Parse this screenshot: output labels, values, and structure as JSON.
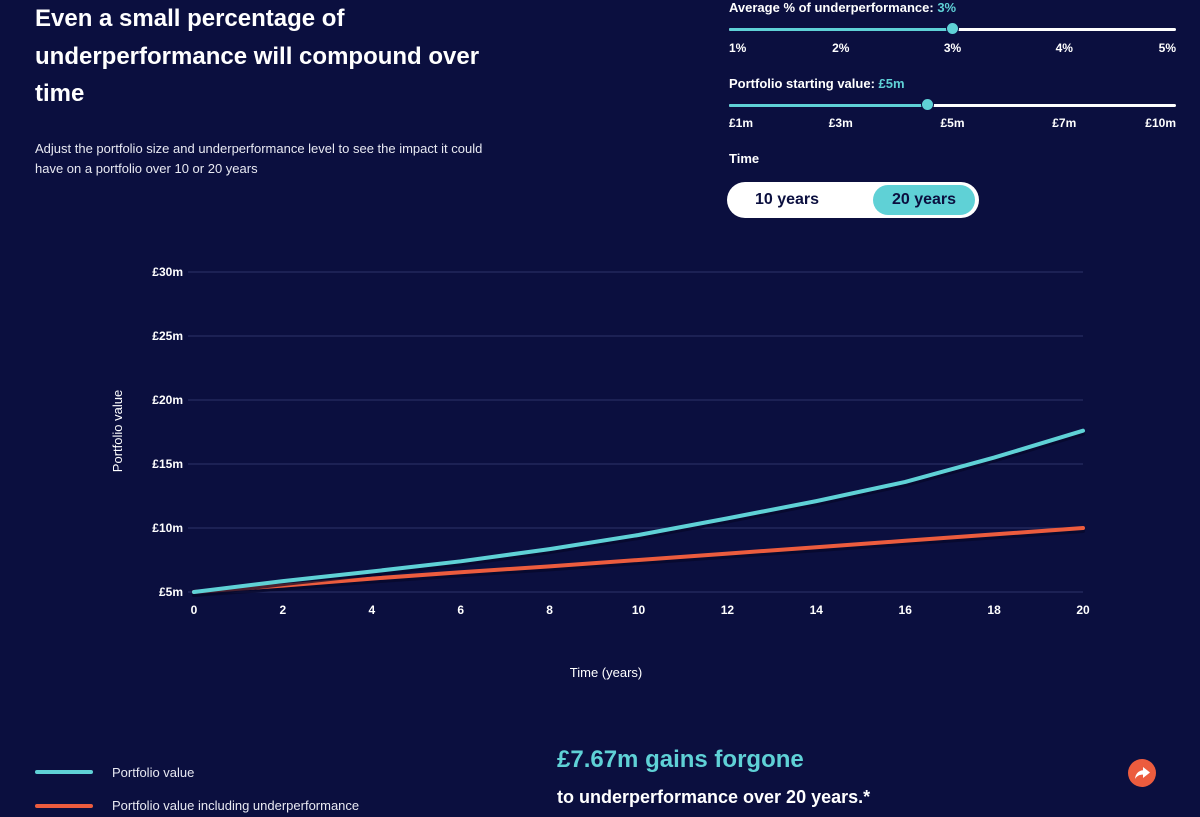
{
  "page": {
    "title": "Even a small percentage of underperformance will compound over time",
    "subtitle": "Adjust the portfolio size and underperformance level to see the impact it could have on a portfolio over 10 or 20 years"
  },
  "controls": {
    "underperformance": {
      "label": "Average % of underperformance:",
      "value": "3%",
      "ticks": [
        "1%",
        "2%",
        "3%",
        "4%",
        "5%"
      ],
      "selected_fraction": 0.5
    },
    "starting_value": {
      "label": "Portfolio starting value:",
      "value": "£5m",
      "ticks": [
        "£1m",
        "£3m",
        "£5m",
        "£7m",
        "£10m"
      ],
      "selected_fraction": 0.444
    },
    "time": {
      "label": "Time",
      "options": [
        "10 years",
        "20 years"
      ],
      "selected": "20 years"
    }
  },
  "chart_data": {
    "type": "line",
    "xlabel": "Time (years)",
    "ylabel": "Portfolio value",
    "x_ticks": [
      "0",
      "2",
      "4",
      "6",
      "8",
      "10",
      "12",
      "14",
      "16",
      "18",
      "20"
    ],
    "y_ticks": [
      "£5m",
      "£10m",
      "£15m",
      "£20m",
      "£25m",
      "£30m"
    ],
    "xlim": [
      0,
      20
    ],
    "ylim": [
      5,
      30
    ],
    "grid": true,
    "x": [
      0,
      2,
      4,
      6,
      8,
      10,
      12,
      14,
      16,
      18,
      20
    ],
    "series": [
      {
        "name": "Portfolio value",
        "color": "#5fd1d6",
        "values": [
          5.0,
          5.85,
          6.6,
          7.4,
          8.35,
          9.45,
          10.75,
          12.1,
          13.6,
          15.5,
          17.6
        ]
      },
      {
        "name": "Portfolio value including underperformance",
        "color": "#ec5c3e",
        "values": [
          5.0,
          5.5,
          6.05,
          6.55,
          7.0,
          7.5,
          8.0,
          8.5,
          9.0,
          9.5,
          10.0
        ]
      }
    ]
  },
  "summary": {
    "gains": "£7.67m gains forgone",
    "sub": "to underperformance over 20 years.*"
  },
  "colors": {
    "background": "#0b0f3f",
    "accent": "#5fd1d6",
    "secondary": "#ec5c3e"
  }
}
